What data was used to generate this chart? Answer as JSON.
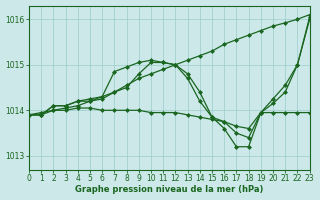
{
  "xlabel": "Graphe pression niveau de la mer (hPa)",
  "bg_color": "#cce8e8",
  "grid_color": "#99cccc",
  "line_color": "#1a6620",
  "xlim": [
    0,
    23
  ],
  "ylim": [
    1012.7,
    1016.3
  ],
  "yticks": [
    1013,
    1014,
    1015,
    1016
  ],
  "xticks": [
    0,
    1,
    2,
    3,
    4,
    5,
    6,
    7,
    8,
    9,
    10,
    11,
    12,
    13,
    14,
    15,
    16,
    17,
    18,
    19,
    20,
    21,
    22,
    23
  ],
  "line_diagonal": [
    1013.9,
    1013.95,
    1014.0,
    1014.05,
    1014.1,
    1014.2,
    1014.3,
    1014.4,
    1014.55,
    1014.7,
    1014.8,
    1014.9,
    1015.0,
    1015.1,
    1015.2,
    1015.3,
    1015.45,
    1015.55,
    1015.65,
    1015.75,
    1015.85,
    1015.92,
    1016.0,
    1016.1
  ],
  "line_peak": [
    1013.9,
    1013.9,
    1014.1,
    1014.1,
    1014.2,
    1014.25,
    1014.3,
    1014.85,
    1014.95,
    1015.05,
    1015.1,
    1015.05,
    1015.0,
    1014.8,
    1014.4,
    1013.85,
    1013.6,
    1013.2,
    1013.2,
    1013.95,
    1014.25,
    1014.55,
    1015.0,
    1016.05
  ],
  "line_med": [
    1013.9,
    1013.9,
    1014.1,
    1014.1,
    1014.2,
    1014.2,
    1014.25,
    1014.4,
    1014.5,
    1014.8,
    1015.05,
    1015.05,
    1015.0,
    1014.7,
    1014.2,
    1013.85,
    1013.75,
    1013.5,
    1013.4,
    1013.95,
    1014.15,
    1014.4,
    1015.0,
    1016.0
  ],
  "line_flat": [
    1013.9,
    1013.9,
    1014.0,
    1014.0,
    1014.05,
    1014.05,
    1014.0,
    1014.0,
    1014.0,
    1014.0,
    1013.95,
    1013.95,
    1013.95,
    1013.9,
    1013.85,
    1013.8,
    1013.75,
    1013.65,
    1013.6,
    1013.95,
    1013.95,
    1013.95,
    1013.95,
    1013.95
  ]
}
